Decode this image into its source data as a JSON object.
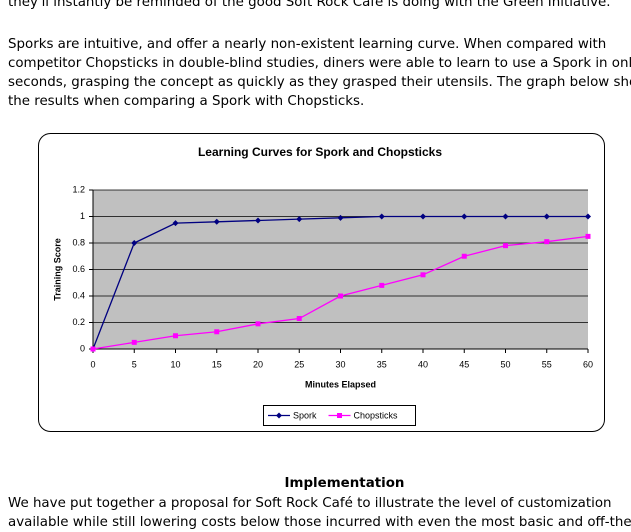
{
  "intro_line": "they'll instantly be reminded of the good Soft Rock Café is doing with the Green Initiative.",
  "paragraph": {
    "lines": [
      "Sporks are intuitive, and offer a nearly non-existent learning curve. When compared with",
      "competitor Chopsticks in double-blind studies, diners were able to learn to use a Spork in only",
      "seconds, grasping the concept as quickly as they grasped their utensils. The graph below shows",
      "the results when comparing a Spork with Chopsticks."
    ]
  },
  "chart_data": {
    "type": "line",
    "title": "Learning Curves for Spork and Chopsticks",
    "x_label": "Minutes Elapsed",
    "y_label": "Training Score",
    "x": [
      0,
      5,
      10,
      15,
      20,
      25,
      30,
      35,
      40,
      45,
      50,
      55,
      60
    ],
    "series": [
      {
        "name": "Spork",
        "color": "#000080",
        "marker": "diamond",
        "values": [
          0,
          0.8,
          0.95,
          0.96,
          0.97,
          0.98,
          0.99,
          1,
          1,
          1,
          1,
          1,
          1
        ]
      },
      {
        "name": "Chopsticks",
        "color": "#ff00ff",
        "marker": "square",
        "values": [
          0,
          0.05,
          0.1,
          0.13,
          0.19,
          0.23,
          0.4,
          0.48,
          0.56,
          0.7,
          0.78,
          0.81,
          0.85
        ]
      }
    ],
    "xlim": [
      0,
      60
    ],
    "xticks": [
      0,
      5,
      10,
      15,
      20,
      25,
      30,
      35,
      40,
      45,
      50,
      55,
      60
    ],
    "ylim": [
      0,
      1.2
    ],
    "yticks": [
      0,
      0.2,
      0.4,
      0.6,
      0.8,
      1,
      1.2
    ],
    "grid": true,
    "legend": "bottom"
  },
  "heading": "Implementation",
  "closing": {
    "lines": [
      "We have put together a proposal for Soft Rock Café to illustrate the level of customization",
      "available while still lowering costs below those incurred with even the most basic and off-the-"
    ]
  }
}
